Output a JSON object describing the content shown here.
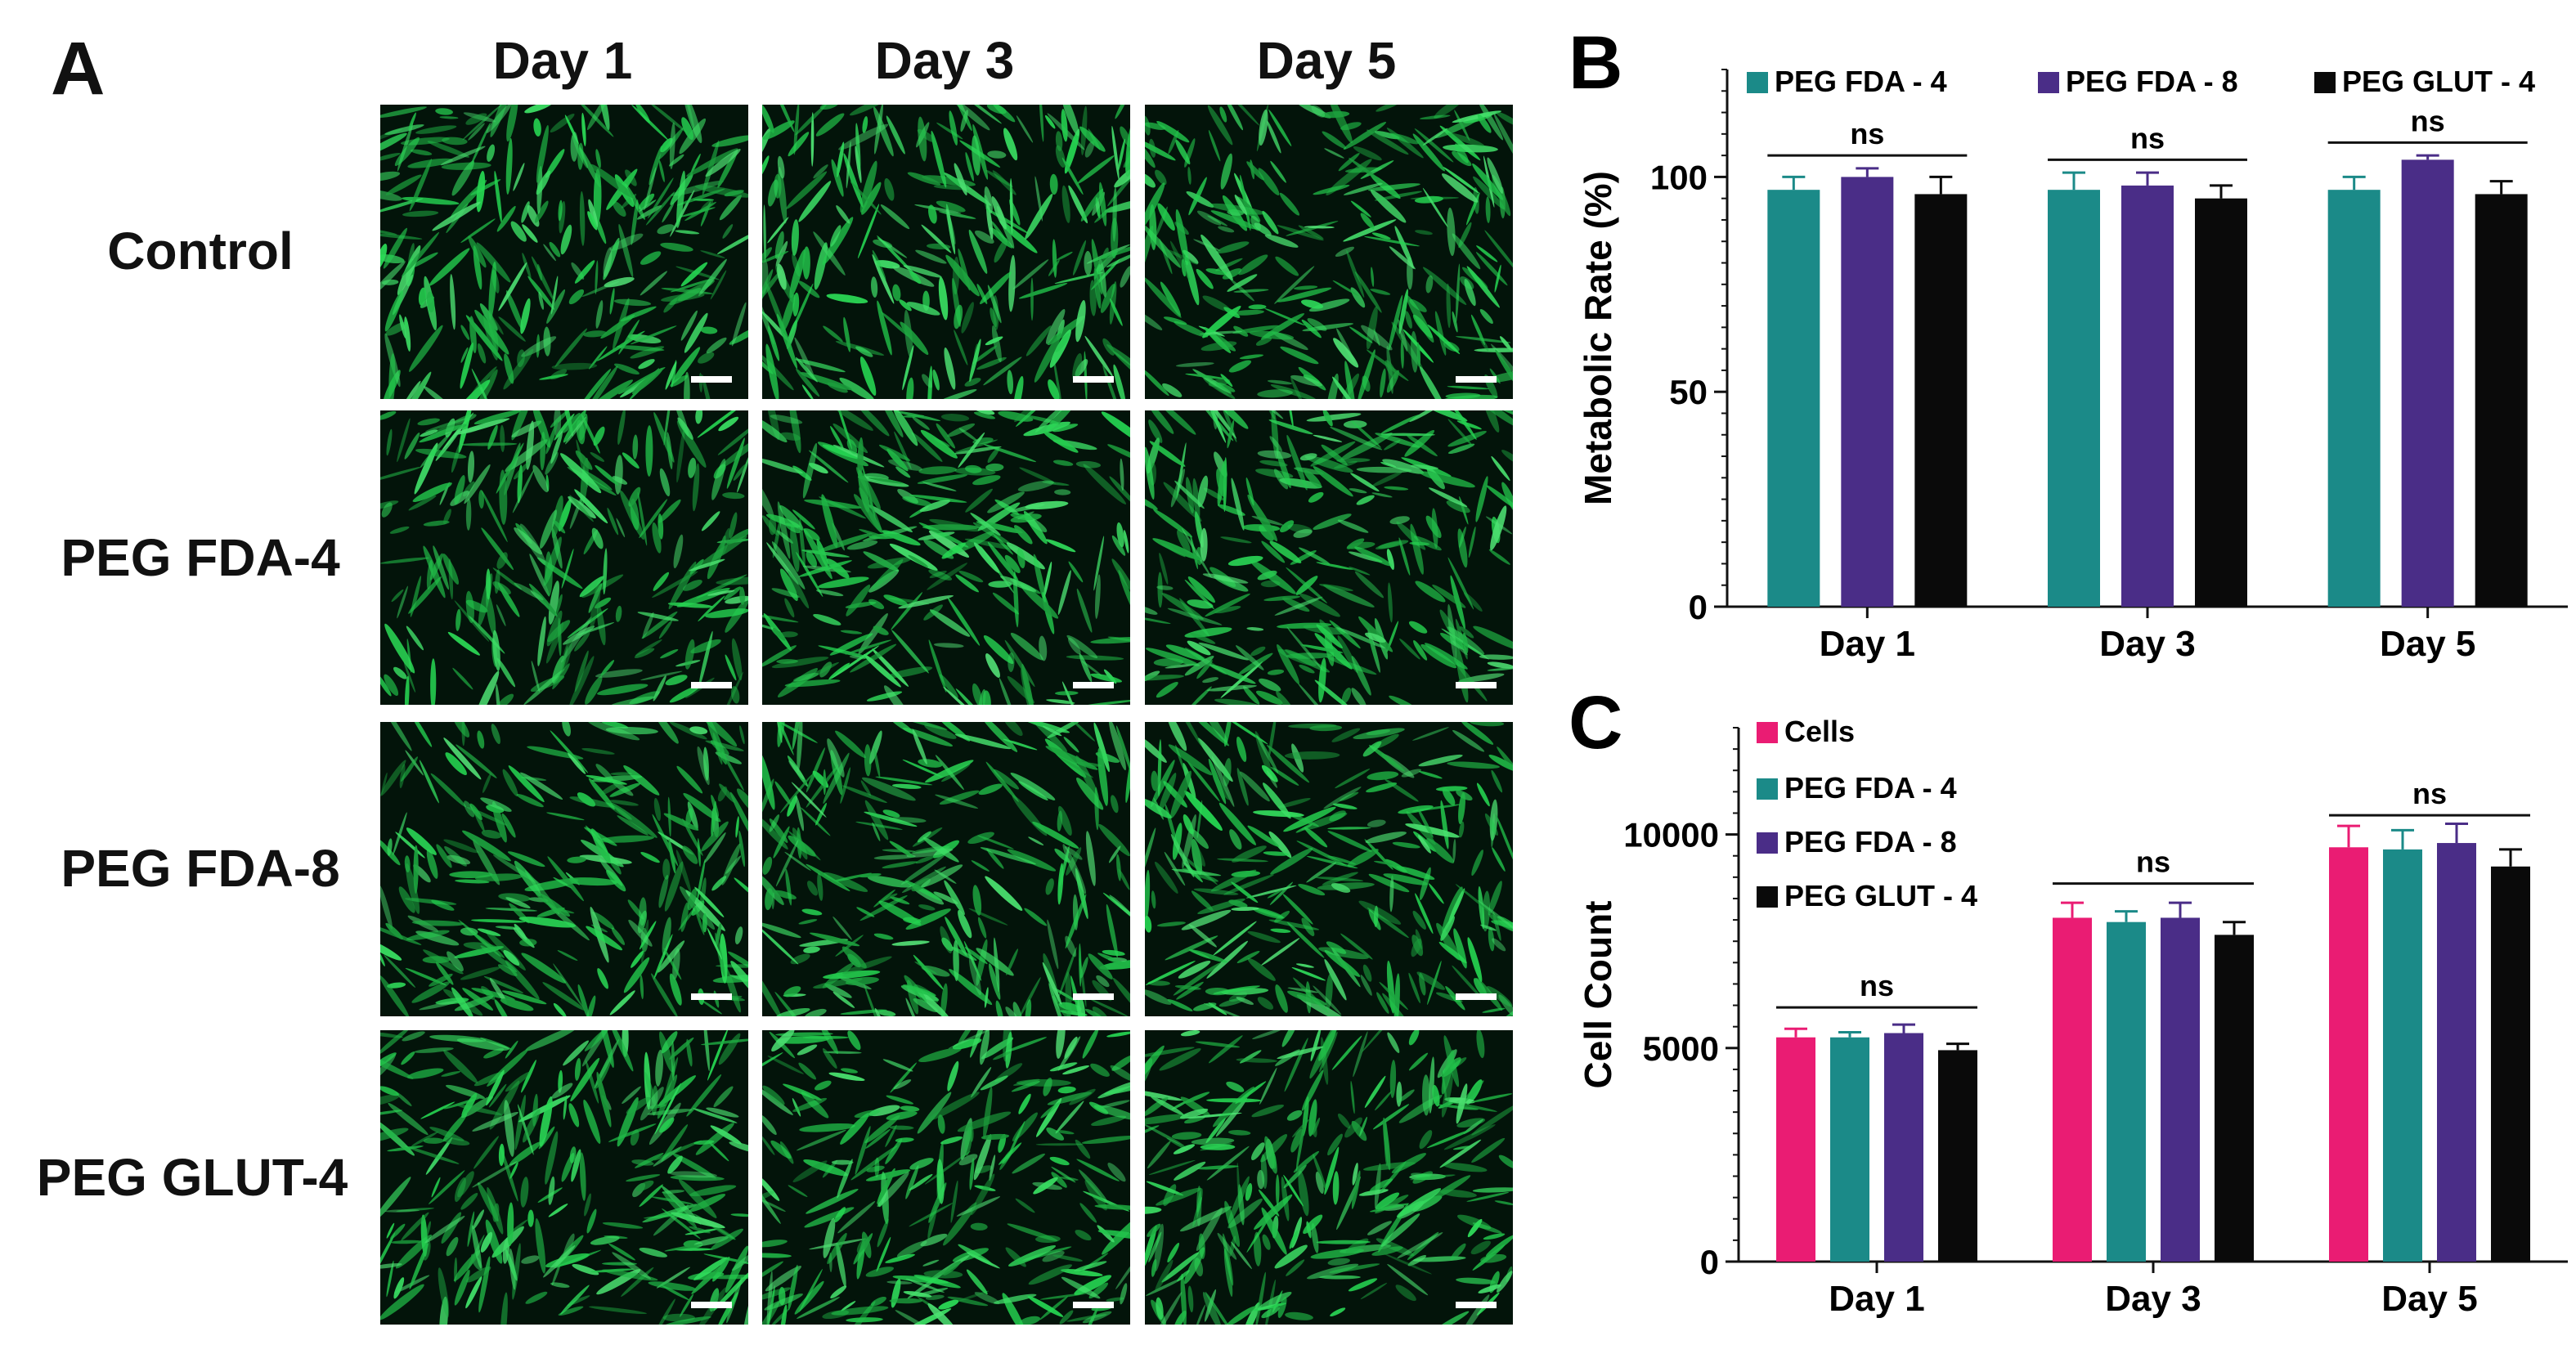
{
  "panelA": {
    "letter": "A",
    "columns": [
      "Day 1",
      "Day 3",
      "Day 5"
    ],
    "rows": [
      "Control",
      "PEG FDA-4",
      "PEG FDA-8",
      "PEG GLUT-4"
    ]
  },
  "chart_data": [
    {
      "panel": "B",
      "type": "bar",
      "ylabel": "Metabolic Rate (%)",
      "categories": [
        "Day 1",
        "Day 3",
        "Day 5"
      ],
      "ylim": [
        0,
        125
      ],
      "yticks": [
        0,
        50,
        100
      ],
      "legend_position": "top",
      "series": [
        {
          "name": "PEG FDA - 4",
          "color": "#1b8a88",
          "values": [
            97,
            97,
            97
          ],
          "errors": [
            3,
            4,
            3
          ]
        },
        {
          "name": "PEG FDA - 8",
          "color": "#4a2d87",
          "values": [
            100,
            98,
            104
          ],
          "errors": [
            2,
            3,
            1
          ]
        },
        {
          "name": "PEG GLUT - 4",
          "color": "#0a0a0a",
          "values": [
            96,
            95,
            96
          ],
          "errors": [
            4,
            3,
            3
          ]
        }
      ],
      "annotations": [
        {
          "text": "ns",
          "category": 0,
          "level": 105
        },
        {
          "text": "ns",
          "category": 1,
          "level": 104
        },
        {
          "text": "ns",
          "category": 2,
          "level": 108
        }
      ]
    },
    {
      "panel": "C",
      "type": "bar",
      "ylabel": "Cell Count",
      "categories": [
        "Day 1",
        "Day 3",
        "Day 5"
      ],
      "ylim": [
        0,
        12500
      ],
      "yticks": [
        0,
        5000,
        10000
      ],
      "legend_position": "top-left",
      "series": [
        {
          "name": "Cells",
          "color": "#ea1c73",
          "values": [
            5250,
            8050,
            9700
          ],
          "errors": [
            200,
            350,
            500
          ]
        },
        {
          "name": "PEG FDA - 4",
          "color": "#1b8a88",
          "values": [
            5250,
            7950,
            9650
          ],
          "errors": [
            120,
            250,
            450
          ]
        },
        {
          "name": "PEG FDA - 8",
          "color": "#4a2d87",
          "values": [
            5350,
            8050,
            9800
          ],
          "errors": [
            200,
            350,
            450
          ]
        },
        {
          "name": "PEG GLUT - 4",
          "color": "#0a0a0a",
          "values": [
            4950,
            7650,
            9250
          ],
          "errors": [
            150,
            300,
            400
          ]
        }
      ],
      "annotations": [
        {
          "text": "ns",
          "category": 0,
          "level": 5950
        },
        {
          "text": "ns",
          "category": 1,
          "level": 8850
        },
        {
          "text": "ns",
          "category": 2,
          "level": 10450
        }
      ]
    }
  ]
}
